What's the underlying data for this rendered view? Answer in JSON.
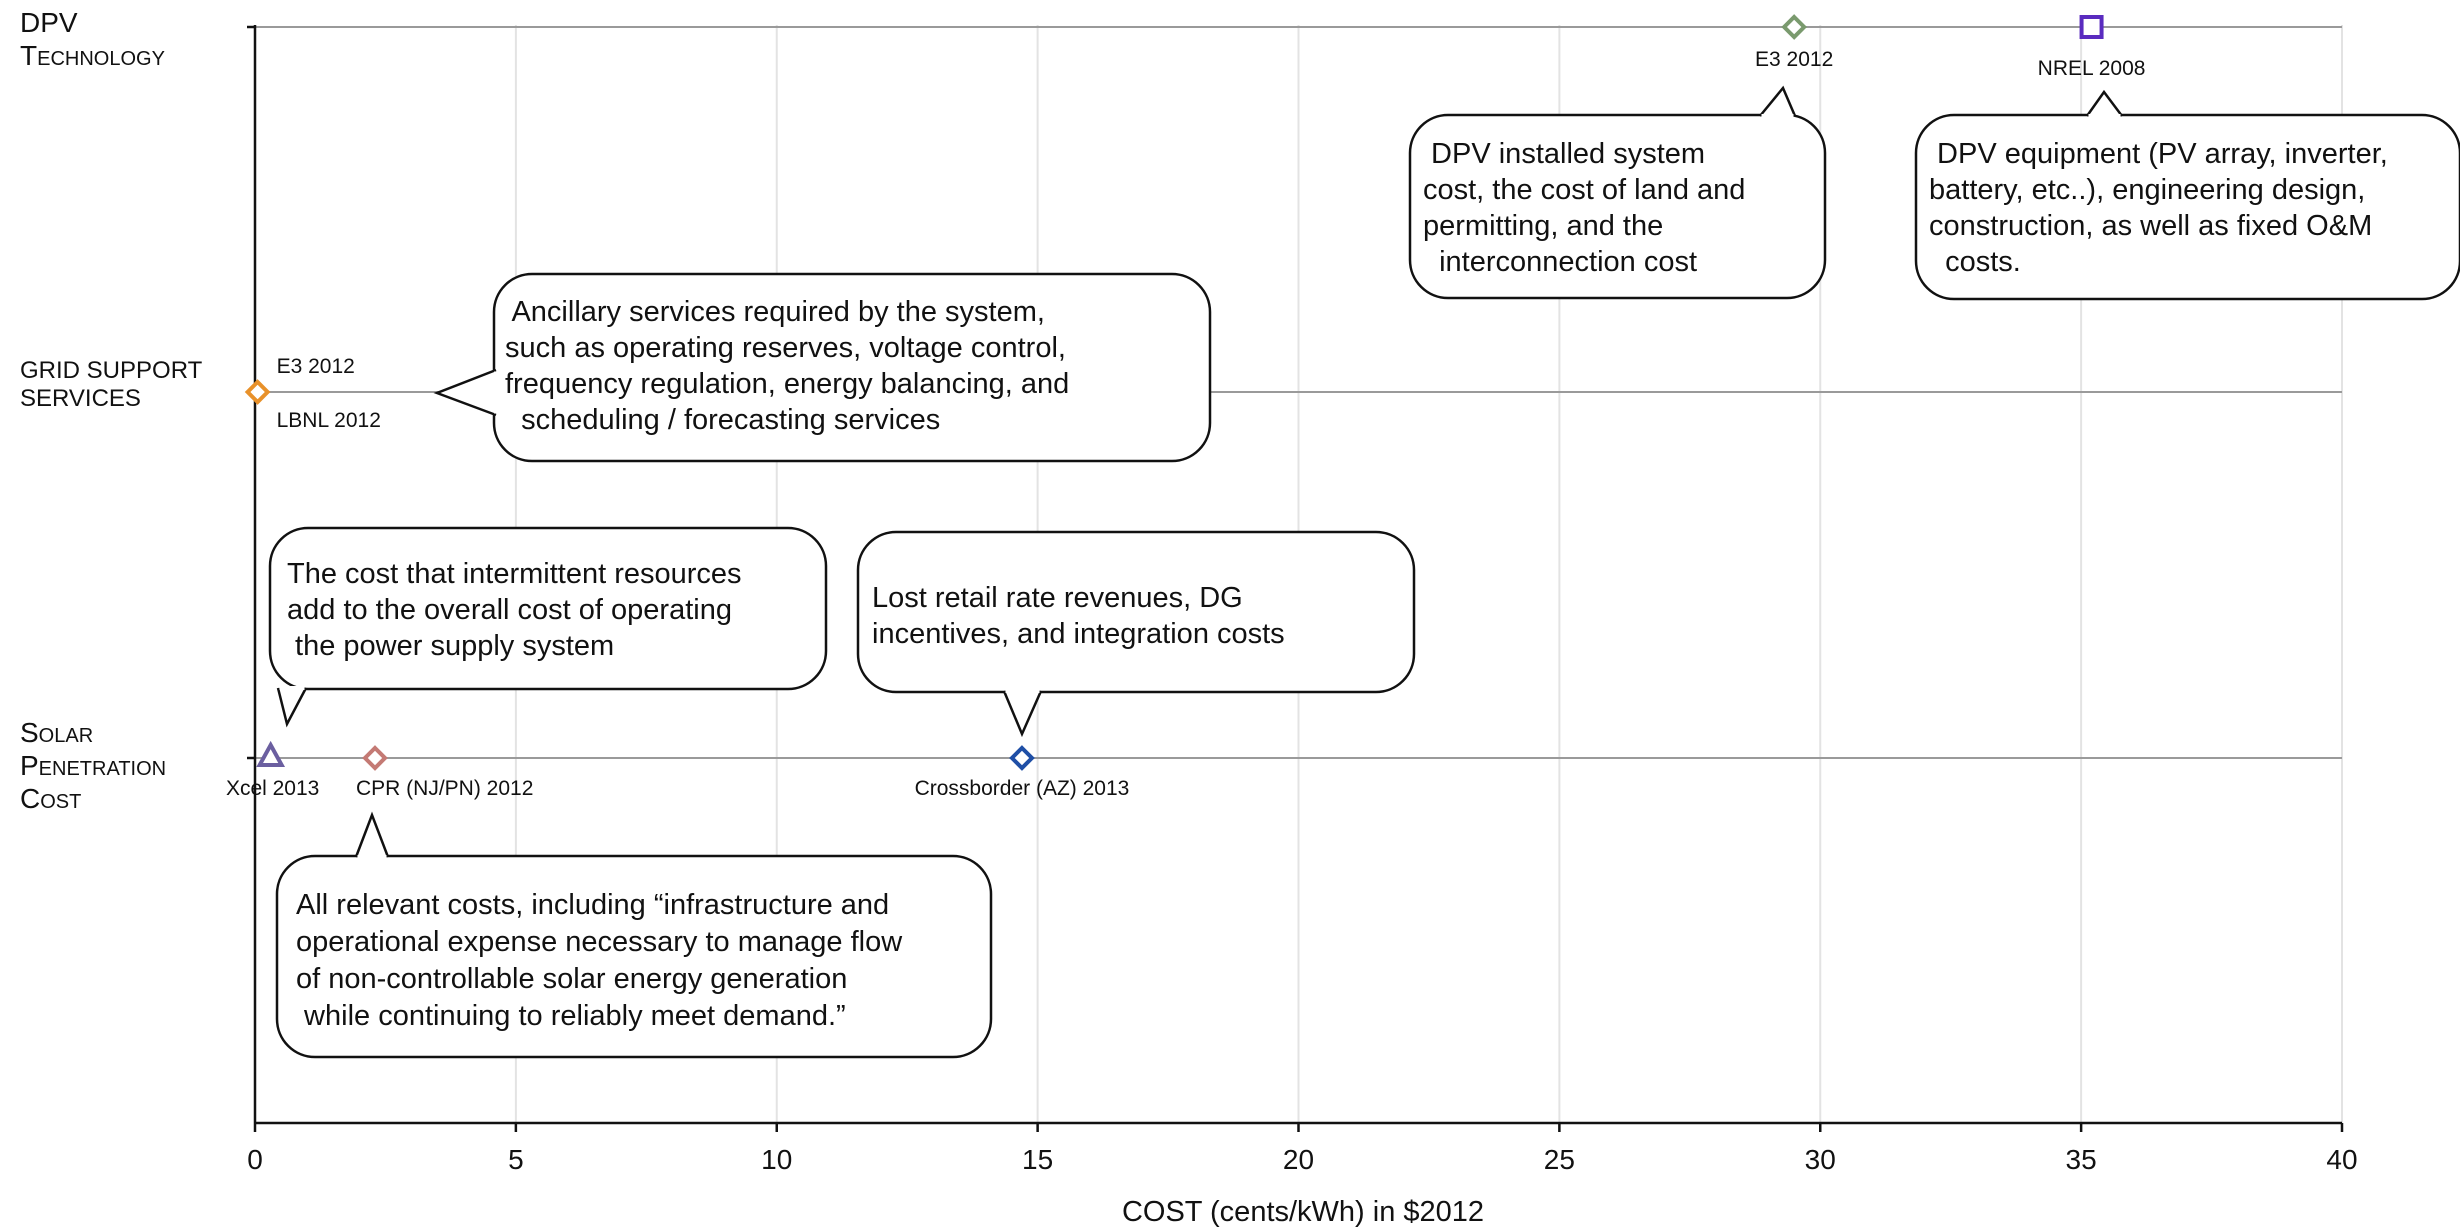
{
  "chart_data": {
    "type": "scatter",
    "xlabel": "COST (cents/kWh) in $2012",
    "xlim": [
      0,
      40
    ],
    "xticks": [
      0,
      5,
      10,
      15,
      20,
      25,
      30,
      35,
      40
    ],
    "grid": "vertical",
    "categories": [
      {
        "id": "dpv",
        "lines": [
          "DPV",
          "Technology"
        ]
      },
      {
        "id": "grid",
        "lines": [
          "GRID SUPPORT",
          "SERVICES"
        ]
      },
      {
        "id": "solar",
        "lines": [
          "Solar",
          "Penetration",
          "Cost"
        ]
      }
    ],
    "points": [
      {
        "category": "dpv",
        "x": 29.5,
        "label": "E3 2012",
        "marker": "diamond",
        "color": "#7a9a6e"
      },
      {
        "category": "dpv",
        "x": 35.2,
        "label": "NREL 2008",
        "marker": "square",
        "color": "#5a2bbf"
      },
      {
        "category": "grid",
        "x": 0.05,
        "label": "E3 2012",
        "label2": "LBNL 2012",
        "marker": "diamond",
        "color": "#e8912a"
      },
      {
        "category": "solar",
        "x": 0.3,
        "label": "Xcel 2013",
        "marker": "triangle",
        "color": "#6b5fa0"
      },
      {
        "category": "solar",
        "x": 2.3,
        "label": "CPR (NJ/PN) 2012",
        "marker": "diamond",
        "color": "#c47a74"
      },
      {
        "category": "solar",
        "x": 14.7,
        "label": "Crossborder (AZ) 2013",
        "marker": "diamond",
        "color": "#1f4fa6"
      }
    ],
    "annotations": [
      {
        "id": "dpv-e3",
        "lines": [
          " DPV installed system",
          "cost, the cost of land and",
          "permitting, and the",
          "  interconnection cost"
        ]
      },
      {
        "id": "dpv-nrel",
        "lines": [
          " DPV equipment (PV array, inverter,",
          "battery, etc..), engineering design,",
          "construction, as well as fixed O&M",
          "  costs."
        ]
      },
      {
        "id": "grid",
        "lines": [
          " Ancillary services required by the system,",
          "such as operating reserves, voltage control,",
          "frequency regulation, energy balancing, and",
          "  scheduling / forecasting services"
        ]
      },
      {
        "id": "xcel",
        "lines": [
          "The cost that intermittent resources",
          "add to the overall cost of operating",
          " the power supply system"
        ]
      },
      {
        "id": "cross",
        "lines": [
          "Lost retail rate revenues, DG",
          "incentives, and integration costs"
        ]
      },
      {
        "id": "cpr",
        "lines": [
          "All relevant costs, including “infrastructure and",
          "operational expense necessary to manage flow",
          "of non-controllable solar energy generation",
          " while continuing to reliably meet demand.”"
        ]
      }
    ]
  }
}
